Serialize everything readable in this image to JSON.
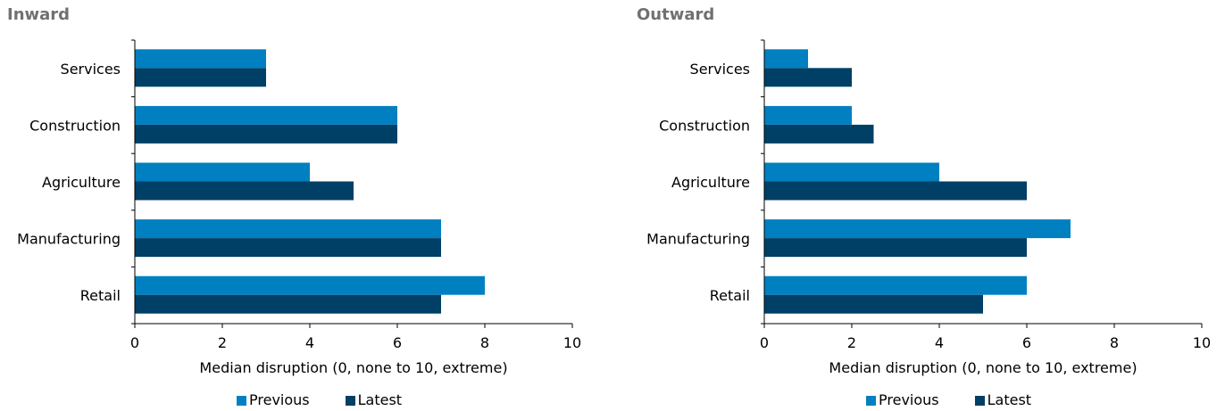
{
  "colors": {
    "previous": "#0080C0",
    "latest": "#003F66",
    "axis": "#000000"
  },
  "chart_data": [
    {
      "type": "bar",
      "orientation": "horizontal",
      "title": "Inward",
      "categories": [
        "Services",
        "Construction",
        "Agriculture",
        "Manufacturing",
        "Retail"
      ],
      "series": [
        {
          "name": "Previous",
          "values": [
            3,
            6,
            4,
            7,
            8
          ]
        },
        {
          "name": "Latest",
          "values": [
            3,
            6,
            5,
            7,
            7
          ]
        }
      ],
      "xlabel": "Median disruption (0, none to 10, extreme)",
      "ylabel": "",
      "xlim": [
        0,
        10
      ],
      "xticks": [
        "0",
        "2",
        "4",
        "6",
        "8",
        "10"
      ],
      "grid": false,
      "legend": "bottom"
    },
    {
      "type": "bar",
      "orientation": "horizontal",
      "title": "Outward",
      "categories": [
        "Services",
        "Construction",
        "Agriculture",
        "Manufacturing",
        "Retail"
      ],
      "series": [
        {
          "name": "Previous",
          "values": [
            1,
            2,
            4,
            7,
            6
          ]
        },
        {
          "name": "Latest",
          "values": [
            2,
            2.5,
            6,
            6,
            5
          ]
        }
      ],
      "xlabel": "Median disruption (0, none to 10, extreme)",
      "ylabel": "",
      "xlim": [
        0,
        10
      ],
      "xticks": [
        "0",
        "2",
        "4",
        "6",
        "8",
        "10"
      ],
      "grid": false,
      "legend": "bottom"
    }
  ]
}
